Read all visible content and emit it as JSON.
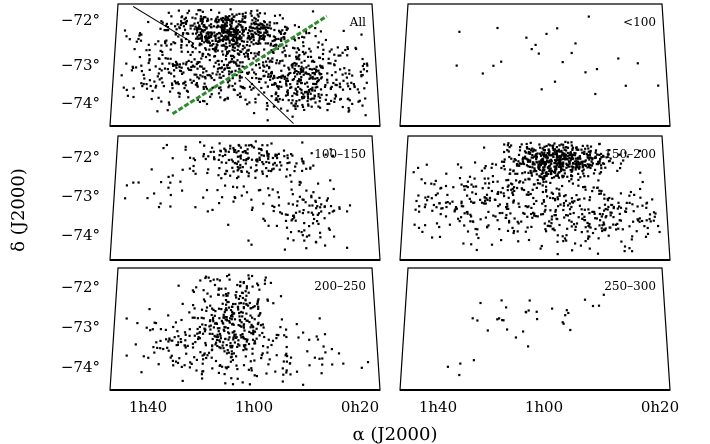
{
  "chart_data": {
    "type": "scatter",
    "layout": "3x2 panel grid of sky positions (trapezoidal projection)",
    "xlabel": "α (J2000)",
    "ylabel": "δ (J2000)",
    "x_ticks": [
      "1h40",
      "1h00",
      "0h20"
    ],
    "y_ticks": [
      "−72°",
      "−73°",
      "−74°"
    ],
    "panels": [
      {
        "label": "All",
        "density": "very high",
        "has_overlay_lines": true
      },
      {
        "label": "<100",
        "density": "very low",
        "has_overlay_lines": false
      },
      {
        "label": "100–150",
        "density": "medium",
        "has_overlay_lines": false
      },
      {
        "label": "150–200",
        "density": "high",
        "has_overlay_lines": false
      },
      {
        "label": "200–250",
        "density": "medium",
        "has_overlay_lines": false
      },
      {
        "label": "250–300",
        "density": "low",
        "has_overlay_lines": false
      }
    ],
    "overlay_line_color": "#2e8b2e",
    "point_color": "#000000",
    "grid": false,
    "legend": "none"
  }
}
